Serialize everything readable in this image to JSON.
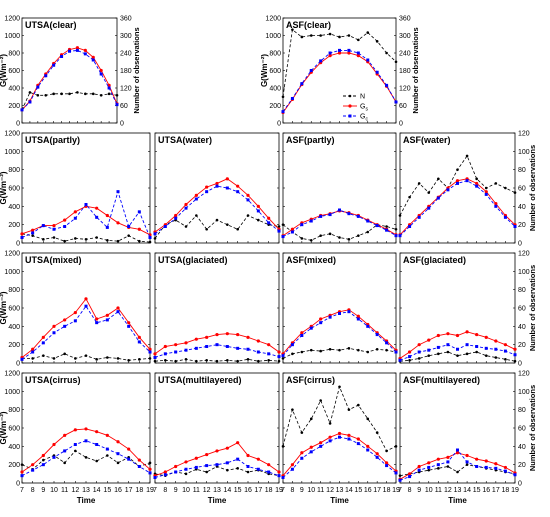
{
  "figure": {
    "xlabel": "Time",
    "ylabel": "G(Wm⁻²)",
    "ylabel_right": "Number of observations",
    "legend": [
      "N",
      "Gs",
      "Gc"
    ],
    "colors": {
      "N": "#000000",
      "Gs": "#ff0000",
      "Gc": "#0000ff"
    }
  },
  "chart_data": [
    {
      "type": "line",
      "title": "UTSA(clear)",
      "x": [
        7,
        8,
        9,
        10,
        11,
        12,
        13,
        14,
        15,
        16,
        17,
        18,
        19
      ],
      "ylim": [
        0,
        1200
      ],
      "y2lim": [
        0,
        360
      ],
      "series": [
        {
          "name": "N",
          "axis": "right",
          "values": [
            45,
            105,
            95,
            95,
            100,
            100,
            100,
            105,
            100,
            100,
            95,
            100,
            95
          ]
        },
        {
          "name": "Gs",
          "axis": "left",
          "values": [
            150,
            250,
            430,
            560,
            680,
            780,
            840,
            860,
            830,
            750,
            600,
            430,
            220
          ]
        },
        {
          "name": "Gc",
          "axis": "left",
          "values": [
            150,
            240,
            410,
            540,
            660,
            760,
            820,
            830,
            790,
            720,
            560,
            400,
            210
          ]
        }
      ]
    },
    {
      "type": "line",
      "title": "ASF(clear)",
      "x": [
        7,
        8,
        9,
        10,
        11,
        12,
        13,
        14,
        15,
        16,
        17,
        18,
        19
      ],
      "ylim": [
        0,
        1200
      ],
      "y2lim": [
        0,
        360
      ],
      "series": [
        {
          "name": "N",
          "axis": "right",
          "values": [
            90,
            320,
            295,
            300,
            300,
            305,
            295,
            300,
            285,
            310,
            280,
            240,
            210
          ]
        },
        {
          "name": "Gs",
          "axis": "left",
          "values": [
            120,
            270,
            440,
            580,
            690,
            770,
            800,
            800,
            770,
            700,
            560,
            420,
            240
          ]
        },
        {
          "name": "Gc",
          "axis": "left",
          "values": [
            130,
            280,
            450,
            600,
            710,
            800,
            830,
            830,
            800,
            720,
            580,
            430,
            240
          ]
        }
      ]
    },
    {
      "type": "line",
      "title": "UTSA(partly)",
      "x": [
        7,
        8,
        9,
        10,
        11,
        12,
        13,
        14,
        15,
        16,
        17,
        18,
        19
      ],
      "ylim": [
        0,
        1200
      ],
      "y2lim": [
        0,
        120
      ],
      "series": [
        {
          "name": "N",
          "axis": "right",
          "values": [
            10,
            8,
            4,
            6,
            2,
            5,
            4,
            6,
            3,
            2,
            8,
            2,
            1
          ]
        },
        {
          "name": "Gs",
          "axis": "left",
          "values": [
            100,
            140,
            190,
            190,
            250,
            340,
            400,
            380,
            300,
            220,
            170,
            150,
            90
          ]
        },
        {
          "name": "Gc",
          "axis": "left",
          "values": [
            60,
            110,
            190,
            150,
            180,
            270,
            420,
            280,
            170,
            560,
            180,
            340,
            60
          ]
        }
      ]
    },
    {
      "type": "line",
      "title": "UTSA(water)",
      "x": [
        7,
        8,
        9,
        10,
        11,
        12,
        13,
        14,
        15,
        16,
        17,
        18,
        19
      ],
      "ylim": [
        0,
        1200
      ],
      "y2lim": [
        0,
        120
      ],
      "series": [
        {
          "name": "N",
          "axis": "right",
          "values": [
            5,
            20,
            25,
            18,
            30,
            15,
            25,
            20,
            15,
            30,
            25,
            20,
            18
          ]
        },
        {
          "name": "Gs",
          "axis": "left",
          "values": [
            120,
            200,
            300,
            420,
            520,
            610,
            650,
            700,
            620,
            520,
            400,
            270,
            150
          ]
        },
        {
          "name": "Gc",
          "axis": "left",
          "values": [
            100,
            180,
            270,
            380,
            480,
            560,
            620,
            600,
            560,
            470,
            350,
            220,
            130
          ]
        }
      ]
    },
    {
      "type": "line",
      "title": "ASF(partly)",
      "x": [
        7,
        8,
        9,
        10,
        11,
        12,
        13,
        14,
        15,
        16,
        17,
        18,
        19
      ],
      "ylim": [
        0,
        1200
      ],
      "y2lim": [
        0,
        120
      ],
      "series": [
        {
          "name": "N",
          "axis": "right",
          "values": [
            20,
            12,
            5,
            3,
            8,
            10,
            6,
            4,
            8,
            12,
            20,
            18,
            15
          ]
        },
        {
          "name": "Gs",
          "axis": "left",
          "values": [
            80,
            150,
            220,
            260,
            300,
            320,
            350,
            330,
            300,
            250,
            200,
            150,
            90
          ]
        },
        {
          "name": "Gc",
          "axis": "left",
          "values": [
            70,
            120,
            200,
            240,
            290,
            310,
            360,
            320,
            290,
            240,
            190,
            140,
            80
          ]
        }
      ]
    },
    {
      "type": "line",
      "title": "ASF(water)",
      "x": [
        7,
        8,
        9,
        10,
        11,
        12,
        13,
        14,
        15,
        16,
        17,
        18,
        19
      ],
      "ylim": [
        0,
        1200
      ],
      "y2lim": [
        0,
        120
      ],
      "series": [
        {
          "name": "N",
          "axis": "right",
          "values": [
            30,
            50,
            65,
            55,
            70,
            60,
            80,
            95,
            70,
            60,
            65,
            60,
            55
          ]
        },
        {
          "name": "Gs",
          "axis": "left",
          "values": [
            90,
            200,
            300,
            400,
            500,
            600,
            680,
            700,
            650,
            560,
            430,
            300,
            200
          ]
        },
        {
          "name": "Gc",
          "axis": "left",
          "values": [
            80,
            180,
            280,
            380,
            490,
            580,
            650,
            680,
            620,
            530,
            400,
            280,
            180
          ]
        }
      ]
    },
    {
      "type": "line",
      "title": "UTSA(mixed)",
      "x": [
        7,
        8,
        9,
        10,
        11,
        12,
        13,
        14,
        15,
        16,
        17,
        18,
        19
      ],
      "ylim": [
        0,
        1200
      ],
      "y2lim": [
        0,
        120
      ],
      "series": [
        {
          "name": "N",
          "axis": "right",
          "values": [
            5,
            5,
            8,
            5,
            10,
            5,
            8,
            4,
            6,
            5,
            3,
            4,
            5
          ]
        },
        {
          "name": "Gs",
          "axis": "left",
          "values": [
            60,
            150,
            280,
            400,
            470,
            550,
            700,
            480,
            520,
            600,
            440,
            280,
            150
          ]
        },
        {
          "name": "Gc",
          "axis": "left",
          "values": [
            40,
            120,
            220,
            330,
            400,
            460,
            620,
            440,
            470,
            560,
            400,
            230,
            120
          ]
        }
      ]
    },
    {
      "type": "line",
      "title": "UTSA(glaciated)",
      "x": [
        7,
        8,
        9,
        10,
        11,
        12,
        13,
        14,
        15,
        16,
        17,
        18,
        19
      ],
      "ylim": [
        0,
        1200
      ],
      "y2lim": [
        0,
        120
      ],
      "series": [
        {
          "name": "N",
          "axis": "right",
          "values": [
            2,
            3,
            2,
            4,
            2,
            3,
            2,
            3,
            2,
            4,
            2,
            3,
            2
          ]
        },
        {
          "name": "Gs",
          "axis": "left",
          "values": [
            100,
            180,
            200,
            220,
            260,
            280,
            310,
            320,
            310,
            280,
            240,
            200,
            120
          ]
        },
        {
          "name": "Gc",
          "axis": "left",
          "values": [
            60,
            100,
            120,
            140,
            160,
            180,
            200,
            180,
            160,
            150,
            120,
            100,
            70
          ]
        }
      ]
    },
    {
      "type": "line",
      "title": "ASF(mixed)",
      "x": [
        7,
        8,
        9,
        10,
        11,
        12,
        13,
        14,
        15,
        16,
        17,
        18,
        19
      ],
      "ylim": [
        0,
        1200
      ],
      "y2lim": [
        0,
        120
      ],
      "series": [
        {
          "name": "N",
          "axis": "right",
          "values": [
            5,
            10,
            12,
            14,
            13,
            15,
            14,
            16,
            14,
            12,
            15,
            14,
            12
          ]
        },
        {
          "name": "Gs",
          "axis": "left",
          "values": [
            100,
            220,
            330,
            400,
            480,
            520,
            560,
            580,
            510,
            420,
            330,
            240,
            140
          ]
        },
        {
          "name": "Gc",
          "axis": "left",
          "values": [
            80,
            200,
            300,
            380,
            440,
            500,
            540,
            560,
            480,
            400,
            310,
            220,
            120
          ]
        }
      ]
    },
    {
      "type": "line",
      "title": "ASF(glaciated)",
      "x": [
        7,
        8,
        9,
        10,
        11,
        12,
        13,
        14,
        15,
        16,
        17,
        18,
        19
      ],
      "ylim": [
        0,
        1200
      ],
      "y2lim": [
        0,
        120
      ],
      "series": [
        {
          "name": "N",
          "axis": "right",
          "values": [
            2,
            3,
            5,
            8,
            10,
            12,
            8,
            10,
            12,
            8,
            6,
            4,
            2
          ]
        },
        {
          "name": "Gs",
          "axis": "left",
          "values": [
            50,
            120,
            200,
            250,
            300,
            320,
            300,
            340,
            310,
            280,
            240,
            200,
            150
          ]
        },
        {
          "name": "Gc",
          "axis": "left",
          "values": [
            30,
            70,
            120,
            140,
            170,
            200,
            150,
            200,
            180,
            160,
            150,
            130,
            90
          ]
        }
      ]
    },
    {
      "type": "line",
      "title": "UTSA(cirrus)",
      "x": [
        7,
        8,
        9,
        10,
        11,
        12,
        13,
        14,
        15,
        16,
        17,
        18,
        19
      ],
      "ylim": [
        0,
        1200
      ],
      "y2lim": [
        0,
        120
      ],
      "series": [
        {
          "name": "N",
          "axis": "right",
          "values": [
            20,
            15,
            25,
            30,
            22,
            35,
            28,
            24,
            30,
            22,
            28,
            18,
            22
          ]
        },
        {
          "name": "Gs",
          "axis": "left",
          "values": [
            120,
            200,
            300,
            420,
            520,
            580,
            590,
            560,
            520,
            450,
            370,
            250,
            150
          ]
        },
        {
          "name": "Gc",
          "axis": "left",
          "values": [
            80,
            140,
            200,
            280,
            350,
            420,
            460,
            420,
            370,
            320,
            260,
            180,
            110
          ]
        }
      ]
    },
    {
      "type": "line",
      "title": "UTSA(multilayered)",
      "x": [
        7,
        8,
        9,
        10,
        11,
        12,
        13,
        14,
        15,
        16,
        17,
        18,
        19
      ],
      "ylim": [
        0,
        1200
      ],
      "y2lim": [
        0,
        120
      ],
      "series": [
        {
          "name": "N",
          "axis": "right",
          "values": [
            10,
            8,
            12,
            10,
            15,
            12,
            18,
            14,
            16,
            12,
            14,
            10,
            8
          ]
        },
        {
          "name": "Gs",
          "axis": "left",
          "values": [
            80,
            120,
            180,
            230,
            270,
            310,
            350,
            380,
            440,
            300,
            260,
            200,
            120
          ]
        },
        {
          "name": "Gc",
          "axis": "left",
          "values": [
            60,
            90,
            120,
            150,
            170,
            190,
            200,
            220,
            260,
            180,
            150,
            120,
            80
          ]
        }
      ]
    },
    {
      "type": "line",
      "title": "ASF(cirrus)",
      "x": [
        7,
        8,
        9,
        10,
        11,
        12,
        13,
        14,
        15,
        16,
        17,
        18,
        19
      ],
      "ylim": [
        0,
        1200
      ],
      "y2lim": [
        0,
        120
      ],
      "series": [
        {
          "name": "N",
          "axis": "right",
          "values": [
            40,
            80,
            55,
            70,
            90,
            65,
            105,
            80,
            85,
            70,
            55,
            35,
            40
          ]
        },
        {
          "name": "Gs",
          "axis": "left",
          "values": [
            80,
            200,
            330,
            390,
            440,
            500,
            540,
            520,
            480,
            400,
            320,
            220,
            130
          ]
        },
        {
          "name": "Gc",
          "axis": "left",
          "values": [
            60,
            150,
            270,
            340,
            400,
            460,
            500,
            480,
            430,
            360,
            280,
            190,
            110
          ]
        }
      ]
    },
    {
      "type": "line",
      "title": "ASF(multilayered)",
      "x": [
        7,
        8,
        9,
        10,
        11,
        12,
        13,
        14,
        15,
        16,
        17,
        18,
        19
      ],
      "ylim": [
        0,
        1200
      ],
      "y2lim": [
        0,
        120
      ],
      "series": [
        {
          "name": "N",
          "axis": "right",
          "values": [
            8,
            10,
            12,
            14,
            16,
            18,
            12,
            20,
            18,
            16,
            14,
            12,
            10
          ]
        },
        {
          "name": "Gs",
          "axis": "left",
          "values": [
            40,
            100,
            180,
            220,
            260,
            280,
            330,
            300,
            260,
            240,
            210,
            170,
            110
          ]
        },
        {
          "name": "Gc",
          "axis": "left",
          "values": [
            30,
            70,
            140,
            170,
            200,
            230,
            360,
            230,
            180,
            170,
            160,
            130,
            90
          ]
        }
      ]
    }
  ]
}
